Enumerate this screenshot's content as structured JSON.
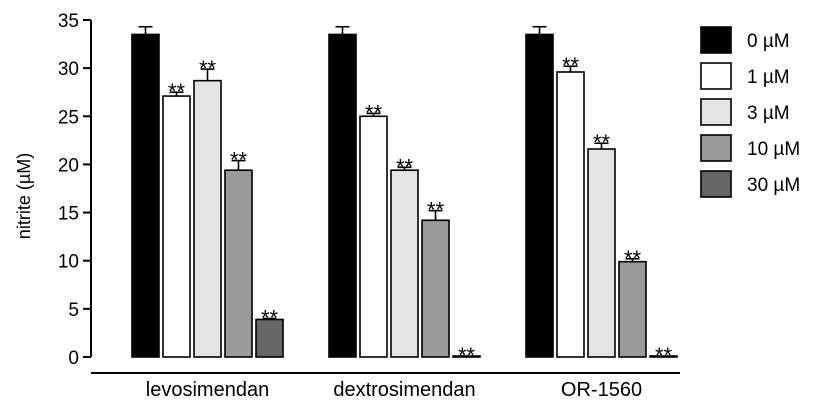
{
  "chart_data": {
    "type": "bar",
    "title": "",
    "xlabel": "",
    "ylabel": "nitrite (µM)",
    "ylim": [
      0,
      35
    ],
    "yticks": [
      0,
      5,
      10,
      15,
      20,
      25,
      30,
      35
    ],
    "grid": false,
    "legend_placement": "right",
    "categories": [
      "levosimendan",
      "dextrosimendan",
      "OR-1560"
    ],
    "series": [
      {
        "name": "0 µM",
        "color": "#000000",
        "values": [
          33.5,
          33.5,
          33.5
        ],
        "errors": [
          0.8,
          0.8,
          0.8
        ],
        "sig": [
          "",
          "",
          ""
        ]
      },
      {
        "name": "1 µM",
        "color": "#ffffff",
        "values": [
          27.1,
          25.0,
          29.6
        ],
        "errors": [
          0.4,
          0.3,
          0.6
        ],
        "sig": [
          "**",
          "**",
          "**"
        ]
      },
      {
        "name": "3 µM",
        "color": "#e4e4e4",
        "values": [
          28.7,
          19.4,
          21.6
        ],
        "errors": [
          1.2,
          0.3,
          0.6
        ],
        "sig": [
          "**",
          "**",
          "**"
        ]
      },
      {
        "name": "10 µM",
        "color": "#9a9a9a",
        "values": [
          19.4,
          14.2,
          9.9
        ],
        "errors": [
          1.0,
          1.0,
          0.3
        ],
        "sig": [
          "**",
          "**",
          "**"
        ]
      },
      {
        "name": "30 µM",
        "color": "#666666",
        "values": [
          3.9,
          0.1,
          0.1
        ],
        "errors": [
          0.1,
          0.0,
          0.0
        ],
        "sig": [
          "**",
          "**",
          "**"
        ]
      }
    ]
  }
}
